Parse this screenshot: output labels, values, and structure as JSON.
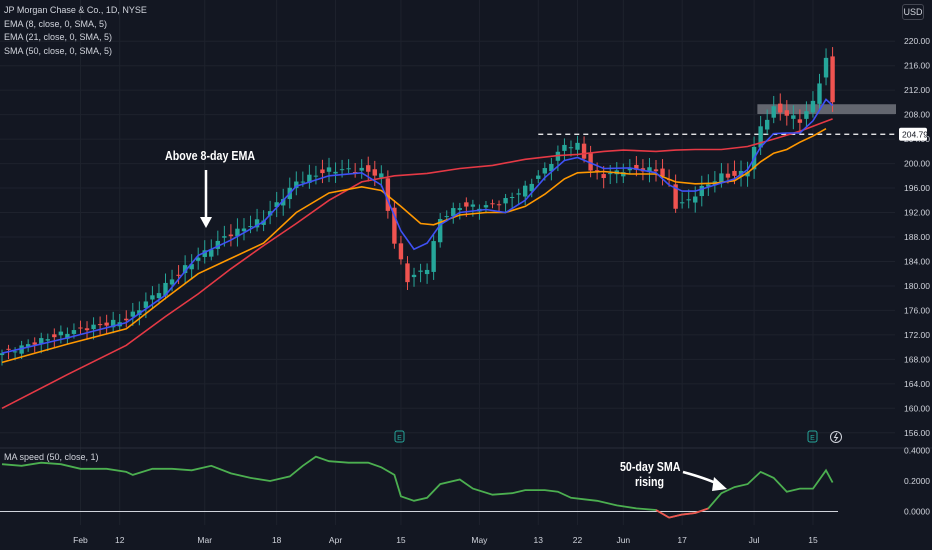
{
  "legend": {
    "title": "JP Morgan Chase & Co., 1D, NYSE",
    "ema8": "EMA (8, close, 0, SMA, 5)",
    "ema21": "EMA (21, close, 0, SMA, 5)",
    "sma50": "SMA (50, close, 0, SMA, 5)"
  },
  "sub_legend": "MA speed (50, close, 1)",
  "currency": "USD",
  "price_marker": "204.79",
  "annotations": {
    "above_ema": "Above 8-day EMA",
    "sma_rising_1": "50-day SMA",
    "sma_rising_2": "rising"
  },
  "colors": {
    "background": "#131722",
    "up": "#26a69a",
    "down": "#ef5350",
    "ema8": "#3f51f5",
    "ema21": "#ff9800",
    "sma50": "#e53945",
    "speed": "#4caf50",
    "speed_negative": "#ef5350"
  },
  "chart_data": {
    "type": "candlestick",
    "main": {
      "ylim": [
        154,
        222
      ],
      "y_ticks": [
        "156.00",
        "160.00",
        "164.00",
        "168.00",
        "172.00",
        "176.00",
        "180.00",
        "184.00",
        "188.00",
        "192.00",
        "196.00",
        "200.00",
        "204.00",
        "208.00",
        "212.00",
        "216.00",
        "220.00"
      ],
      "x_ticks": [
        {
          "label": "Feb",
          "index": 12
        },
        {
          "label": "12",
          "index": 18
        },
        {
          "label": "Mar",
          "index": 31
        },
        {
          "label": "18",
          "index": 42
        },
        {
          "label": "Apr",
          "index": 51
        },
        {
          "label": "15",
          "index": 61
        },
        {
          "label": "May",
          "index": 73
        },
        {
          "label": "13",
          "index": 82
        },
        {
          "label": "22",
          "index": 88
        },
        {
          "label": "Jun",
          "index": 95
        },
        {
          "label": "17",
          "index": 104
        },
        {
          "label": "Jul",
          "index": 115
        },
        {
          "label": "15",
          "index": 124
        }
      ],
      "resistance_level": 204.79,
      "resistance_zone": [
        208.1,
        209.7
      ],
      "price_path": [
        [
          0,
          169
        ],
        [
          10,
          172.5
        ],
        [
          19,
          174.5
        ],
        [
          28,
          183
        ],
        [
          34,
          188
        ],
        [
          40,
          191
        ],
        [
          45,
          197
        ],
        [
          50,
          199
        ],
        [
          55,
          199
        ],
        [
          58,
          198
        ],
        [
          60,
          187
        ],
        [
          62,
          181
        ],
        [
          65,
          183
        ],
        [
          67,
          191
        ],
        [
          70,
          193
        ],
        [
          74,
          193
        ],
        [
          77,
          194
        ],
        [
          80,
          196
        ],
        [
          83,
          199
        ],
        [
          86,
          203
        ],
        [
          88,
          203
        ],
        [
          90,
          199
        ],
        [
          92,
          198
        ],
        [
          95,
          199
        ],
        [
          97,
          199
        ],
        [
          100,
          199
        ],
        [
          102,
          197
        ],
        [
          103,
          193
        ],
        [
          105,
          194
        ],
        [
          107,
          196
        ],
        [
          110,
          198
        ],
        [
          112,
          198
        ],
        [
          114,
          199
        ],
        [
          116,
          206
        ],
        [
          118,
          209
        ],
        [
          120,
          208
        ],
        [
          122,
          207
        ],
        [
          124,
          210
        ],
        [
          126,
          217
        ],
        [
          127,
          210
        ]
      ],
      "ema8": [
        [
          0,
          169
        ],
        [
          10,
          171.5
        ],
        [
          19,
          174
        ],
        [
          25,
          178.5
        ],
        [
          30,
          185
        ],
        [
          35,
          187.5
        ],
        [
          40,
          190.5
        ],
        [
          45,
          196.3
        ],
        [
          50,
          198
        ],
        [
          55,
          198.5
        ],
        [
          58,
          196.5
        ],
        [
          61,
          189
        ],
        [
          63,
          186
        ],
        [
          65,
          187
        ],
        [
          67,
          190
        ],
        [
          70,
          192
        ],
        [
          74,
          192.5
        ],
        [
          77,
          192
        ],
        [
          80,
          194
        ],
        [
          83,
          197.7
        ],
        [
          86,
          200.5
        ],
        [
          88,
          201
        ],
        [
          92,
          199.2
        ],
        [
          96,
          199.3
        ],
        [
          100,
          198.5
        ],
        [
          102,
          196.5
        ],
        [
          104,
          195.5
        ],
        [
          106,
          195.5
        ],
        [
          109,
          196.5
        ],
        [
          112,
          197.5
        ],
        [
          114,
          199
        ],
        [
          116,
          202.7
        ],
        [
          118,
          204.9
        ],
        [
          120,
          205
        ],
        [
          122,
          205
        ],
        [
          124,
          207
        ],
        [
          126,
          210.5
        ],
        [
          127,
          209.5
        ]
      ],
      "ema21": [
        [
          0,
          167.5
        ],
        [
          10,
          170.5
        ],
        [
          19,
          173
        ],
        [
          25,
          178
        ],
        [
          30,
          182
        ],
        [
          35,
          184.5
        ],
        [
          40,
          187
        ],
        [
          45,
          192
        ],
        [
          50,
          195.2
        ],
        [
          55,
          196.2
        ],
        [
          58,
          195.6
        ],
        [
          61,
          193
        ],
        [
          64,
          190.2
        ],
        [
          66,
          190
        ],
        [
          70,
          191.6
        ],
        [
          74,
          192
        ],
        [
          77,
          192
        ],
        [
          80,
          193
        ],
        [
          83,
          195
        ],
        [
          86,
          197.5
        ],
        [
          88,
          198.5
        ],
        [
          92,
          198.7
        ],
        [
          96,
          198.3
        ],
        [
          100,
          198.3
        ],
        [
          103,
          197
        ],
        [
          106,
          196.7
        ],
        [
          109,
          196.8
        ],
        [
          112,
          197.2
        ],
        [
          114,
          198.5
        ],
        [
          116,
          200.3
        ],
        [
          118,
          201.7
        ],
        [
          120,
          202.3
        ],
        [
          122,
          203.5
        ],
        [
          124,
          204.5
        ],
        [
          126,
          205.7
        ]
      ],
      "sma50": [
        [
          0,
          160
        ],
        [
          10,
          165.5
        ],
        [
          19,
          170.3
        ],
        [
          25,
          175
        ],
        [
          30,
          178.7
        ],
        [
          35,
          182.8
        ],
        [
          40,
          186.6
        ],
        [
          45,
          190.2
        ],
        [
          50,
          194
        ],
        [
          55,
          197
        ],
        [
          60,
          198
        ],
        [
          65,
          198.4
        ],
        [
          70,
          199.2
        ],
        [
          75,
          199.7
        ],
        [
          80,
          200.7
        ],
        [
          85,
          201.3
        ],
        [
          88,
          201.5
        ],
        [
          92,
          202
        ],
        [
          95,
          202.2
        ],
        [
          100,
          202
        ],
        [
          103,
          202.2
        ],
        [
          106,
          202.3
        ],
        [
          110,
          202.3
        ],
        [
          114,
          202.8
        ],
        [
          118,
          204
        ],
        [
          122,
          205.3
        ],
        [
          125,
          206.5
        ],
        [
          127,
          207.3
        ]
      ]
    },
    "ma_speed": {
      "ylim": [
        -0.075,
        0.425
      ],
      "y_ticks": [
        "0.4000",
        "0.2000",
        "0.0000"
      ],
      "values": [
        [
          0,
          0.31
        ],
        [
          3,
          0.3
        ],
        [
          6,
          0.32
        ],
        [
          9,
          0.31
        ],
        [
          12,
          0.28
        ],
        [
          16,
          0.28
        ],
        [
          19,
          0.26
        ],
        [
          20,
          0.24
        ],
        [
          23,
          0.28
        ],
        [
          26,
          0.28
        ],
        [
          29,
          0.27
        ],
        [
          32,
          0.3
        ],
        [
          35,
          0.25
        ],
        [
          38,
          0.22
        ],
        [
          41,
          0.2
        ],
        [
          44,
          0.23
        ],
        [
          46,
          0.3
        ],
        [
          48,
          0.36
        ],
        [
          50,
          0.33
        ],
        [
          53,
          0.32
        ],
        [
          56,
          0.32
        ],
        [
          58,
          0.29
        ],
        [
          60,
          0.24
        ],
        [
          61,
          0.1
        ],
        [
          63,
          0.07
        ],
        [
          65,
          0.09
        ],
        [
          67,
          0.18
        ],
        [
          70,
          0.21
        ],
        [
          72,
          0.15
        ],
        [
          75,
          0.11
        ],
        [
          78,
          0.12
        ],
        [
          80,
          0.14
        ],
        [
          83,
          0.14
        ],
        [
          85,
          0.13
        ],
        [
          87,
          0.09
        ],
        [
          89,
          0.08
        ],
        [
          91,
          0.07
        ],
        [
          94,
          0.04
        ],
        [
          97,
          0.02
        ],
        [
          100,
          0.01
        ],
        [
          102,
          -0.04
        ],
        [
          104,
          -0.02
        ],
        [
          106,
          -0.01
        ],
        [
          108,
          0.02
        ],
        [
          110,
          0.12
        ],
        [
          112,
          0.16
        ],
        [
          114,
          0.18
        ],
        [
          116,
          0.26
        ],
        [
          118,
          0.22
        ],
        [
          120,
          0.13
        ],
        [
          122,
          0.15
        ],
        [
          124,
          0.15
        ],
        [
          126,
          0.27
        ],
        [
          127,
          0.19
        ]
      ]
    }
  }
}
